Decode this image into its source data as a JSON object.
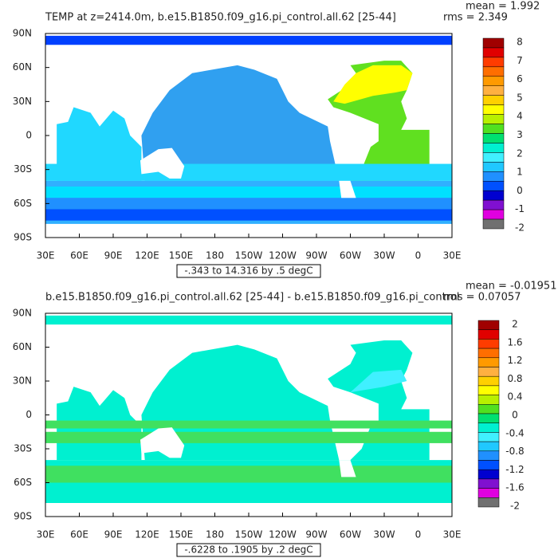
{
  "panels": [
    {
      "title": "TEMP at z=2414.0m, b.e15.B1850.f09_g16.pi_control.all.62 [25-44]",
      "mean": "mean = 1.992",
      "rms": "rms = 2.349",
      "x_labels": [
        "30E",
        "60E",
        "90E",
        "120E",
        "150E",
        "180",
        "150W",
        "120W",
        "90W",
        "60W",
        "30W",
        "0",
        "30E"
      ],
      "y_labels": [
        "90N",
        "60N",
        "30N",
        "0",
        "30S",
        "60S",
        "90S"
      ],
      "colorbar": {
        "labels": [
          "8",
          "7",
          "6",
          "5",
          "4",
          "3",
          "2",
          "1",
          "0",
          "-1",
          "-2"
        ]
      },
      "range_note": "-.343 to 14.316 by .5 degC"
    },
    {
      "title": "b.e15.B1850.f09_g16.pi_control.all.62 [25-44] - b.e15.B1850.f09_g16.pi_control",
      "mean": "mean = -0.01951",
      "rms": "rms = 0.07057",
      "x_labels": [
        "30E",
        "60E",
        "90E",
        "120E",
        "150E",
        "180",
        "150W",
        "120W",
        "90W",
        "60W",
        "30W",
        "0",
        "30E"
      ],
      "y_labels": [
        "90N",
        "60N",
        "30N",
        "0",
        "30S",
        "60S",
        "90S"
      ],
      "colorbar": {
        "labels": [
          "2",
          "1.6",
          "1.2",
          "0.8",
          "0.4",
          "0",
          "-0.4",
          "-0.8",
          "-1.2",
          "-1.6",
          "-2"
        ]
      },
      "range_note": "-.6228 to .1905 by .2 degC"
    }
  ]
}
